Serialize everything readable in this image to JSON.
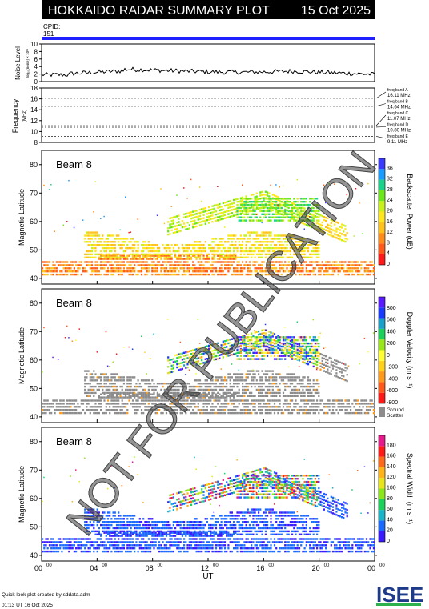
{
  "header": {
    "title": "HOKKAIDO RADAR SUMMARY PLOT",
    "date": "15 Oct 2025",
    "cpid_label": "CPID:",
    "cpid_value": "151"
  },
  "noise_panel": {
    "ylabel": "Noise Level",
    "sublabel": "log₁₀(noise) × 10¹¹",
    "yticks": [
      "0",
      "2",
      "4",
      "6",
      "8",
      "10"
    ],
    "ylim": [
      0,
      10
    ]
  },
  "freq_panel": {
    "ylabel": "Frequency",
    "unit": "(MHz)",
    "yticks": [
      "8",
      "10",
      "12",
      "14",
      "16",
      "18"
    ],
    "ylim": [
      8,
      18
    ],
    "bands": [
      {
        "label": "freq band A",
        "freq": "16.11 MHz",
        "mhz": 16.11
      },
      {
        "label": "freq band B",
        "freq": "14.64 MHz",
        "mhz": 14.64
      },
      {
        "label": "freq band C",
        "freq": "11.07 MHz",
        "mhz": 11.07
      },
      {
        "label": "freq band D",
        "freq": "10.80 MHz",
        "mhz": 10.8
      },
      {
        "label": "freq band E",
        "freq": "9.11 MHz",
        "mhz": 9.11
      }
    ]
  },
  "panels": [
    {
      "beam": "Beam  8",
      "ylabel": "Magnetic Latitude",
      "cb_label": "Backscatter Power (dB)",
      "cb_ticks": [
        "0",
        "4",
        "8",
        "12",
        "16",
        "20",
        "24",
        "28",
        "32",
        "36"
      ],
      "kind": "power"
    },
    {
      "beam": "Beam  8",
      "ylabel": "Magnetic Latitude",
      "cb_label": "Doppler Velocity (m s⁻¹)",
      "cb_ticks": [
        "-800",
        "-600",
        "-400",
        "-200",
        "0",
        "200",
        "400",
        "600",
        "800"
      ],
      "kind": "velocity",
      "ground_label_1": "Ground",
      "ground_label_2": "Scatter"
    },
    {
      "beam": "Beam  8",
      "ylabel": "Magnetic Latitude",
      "cb_label": "Spectral Width (m s⁻¹)",
      "cb_ticks": [
        "0",
        "20",
        "40",
        "60",
        "80",
        "100",
        "120",
        "140",
        "160",
        "180"
      ],
      "kind": "width"
    }
  ],
  "lat_ticks": [
    "40",
    "50",
    "60",
    "70",
    "80"
  ],
  "x_ticks": [
    "00",
    "04",
    "08",
    "12",
    "16",
    "20",
    "00"
  ],
  "x_tick_sup": "00",
  "xlabel": "UT",
  "watermark": "NOT FOR PUBLICATION",
  "footer": {
    "line1": "Quick look plot created by sddata.adm",
    "line2": "01:13 UT 16 Oct 2025",
    "logo": "ISEE"
  },
  "chart_data": {
    "type": "heatmap",
    "x_range_ut_hours": [
      0,
      24
    ],
    "lat_range": [
      38,
      85
    ],
    "colors": {
      "ground_scatter": "#8c8c8c",
      "header_bg": "#000000",
      "cpid_bar": "#2020ff"
    }
  }
}
